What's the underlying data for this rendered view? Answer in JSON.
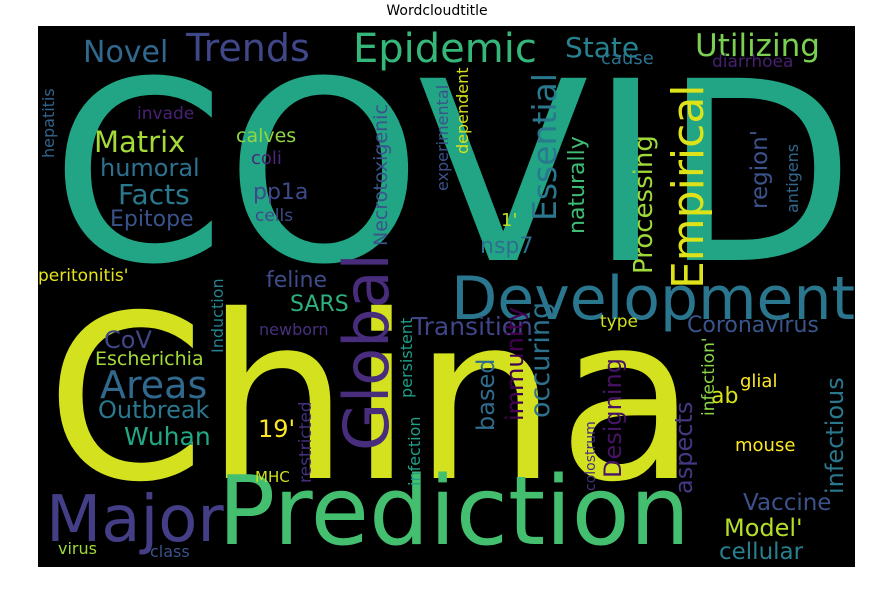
{
  "chart_data": {
    "type": "wordcloud",
    "title": "Wordcloudtitle",
    "words": [
      {
        "text": "COVID",
        "color": "#21a585"
      },
      {
        "text": "China",
        "color": "#d3e11e"
      },
      {
        "text": "Prediction",
        "color": "#44bf70"
      },
      {
        "text": "Development",
        "color": "#2a768e"
      },
      {
        "text": "Major",
        "color": "#433e85"
      },
      {
        "text": "Global",
        "color": "#472d7b"
      },
      {
        "text": "Empirical",
        "color": "#dde318"
      },
      {
        "text": "Epidemic",
        "color": "#35b779"
      },
      {
        "text": "Trends",
        "color": "#3f4788"
      },
      {
        "text": "Utilizing",
        "color": "#7ad151"
      },
      {
        "text": "Novel",
        "color": "#31688e"
      },
      {
        "text": "State",
        "color": "#26828e"
      },
      {
        "text": "Areas",
        "color": "#31688e"
      },
      {
        "text": "Essential",
        "color": "#2a788e"
      },
      {
        "text": "Processing",
        "color": "#9fda3a"
      },
      {
        "text": "Matrix",
        "color": "#a5db36"
      },
      {
        "text": "humoral",
        "color": "#2c718e"
      },
      {
        "text": "Facts",
        "color": "#2a788e"
      },
      {
        "text": "Epitope",
        "color": "#3b528b"
      },
      {
        "text": "pp1a",
        "color": "#3e4989"
      },
      {
        "text": "calves",
        "color": "#90d743"
      },
      {
        "text": "coli",
        "color": "#482878"
      },
      {
        "text": "cells",
        "color": "#3e4a89"
      },
      {
        "text": "invade",
        "color": "#482173"
      },
      {
        "text": "hepatitis",
        "color": "#33638d"
      },
      {
        "text": "Necrotoxigenic",
        "color": "#3b528b"
      },
      {
        "text": "experimental",
        "color": "#3b528b"
      },
      {
        "text": "dependent",
        "color": "#d8e219"
      },
      {
        "text": "cause",
        "color": "#2d708e"
      },
      {
        "text": "diarrhoea",
        "color": "#481f70"
      },
      {
        "text": "region'",
        "color": "#3b528b"
      },
      {
        "text": "antigens",
        "color": "#31688e"
      },
      {
        "text": "naturally",
        "color": "#3dbc74"
      },
      {
        "text": "1'",
        "color": "#c2df23"
      },
      {
        "text": "nsp7",
        "color": "#2d708e"
      },
      {
        "text": "peritonitis'",
        "color": "#e5e419"
      },
      {
        "text": "Induction",
        "color": "#25838e"
      },
      {
        "text": "persistent",
        "color": "#1f9e89"
      },
      {
        "text": "feline",
        "color": "#3e4c8a"
      },
      {
        "text": "SARS",
        "color": "#2db27d"
      },
      {
        "text": "Transition",
        "color": "#404588"
      },
      {
        "text": "Coronavirus",
        "color": "#39558c"
      },
      {
        "text": "CoV",
        "color": "#3f4788"
      },
      {
        "text": "Escherichia",
        "color": "#a5db36"
      },
      {
        "text": "newborn",
        "color": "#46307e"
      },
      {
        "text": "type",
        "color": "#d0e11c"
      },
      {
        "text": "immunity",
        "color": "#440154"
      },
      {
        "text": "occuring",
        "color": "#2c728e"
      },
      {
        "text": "based",
        "color": "#2f6c8e"
      },
      {
        "text": "Designing",
        "color": "#471365"
      },
      {
        "text": "aspects",
        "color": "#453781"
      },
      {
        "text": "ab",
        "color": "#d8e219"
      },
      {
        "text": "infection'",
        "color": "#8bd646"
      },
      {
        "text": "glial",
        "color": "#fde725"
      },
      {
        "text": "infectious",
        "color": "#2a788e"
      },
      {
        "text": "Outbreak",
        "color": "#2a788e"
      },
      {
        "text": "Wuhan",
        "color": "#22a884"
      },
      {
        "text": "19'",
        "color": "#fde725"
      },
      {
        "text": "restricted",
        "color": "#472f7d"
      },
      {
        "text": "infection",
        "color": "#1fa188"
      },
      {
        "text": "colostrum",
        "color": "#46307e"
      },
      {
        "text": "mouse",
        "color": "#fde725"
      },
      {
        "text": "MHC",
        "color": "#d0e11c"
      },
      {
        "text": "Vaccine",
        "color": "#3b528b"
      },
      {
        "text": "Model'",
        "color": "#b5de2b"
      },
      {
        "text": "cellular",
        "color": "#27808e"
      },
      {
        "text": "virus",
        "color": "#9fda3a"
      },
      {
        "text": "class",
        "color": "#3b528b"
      }
    ]
  }
}
